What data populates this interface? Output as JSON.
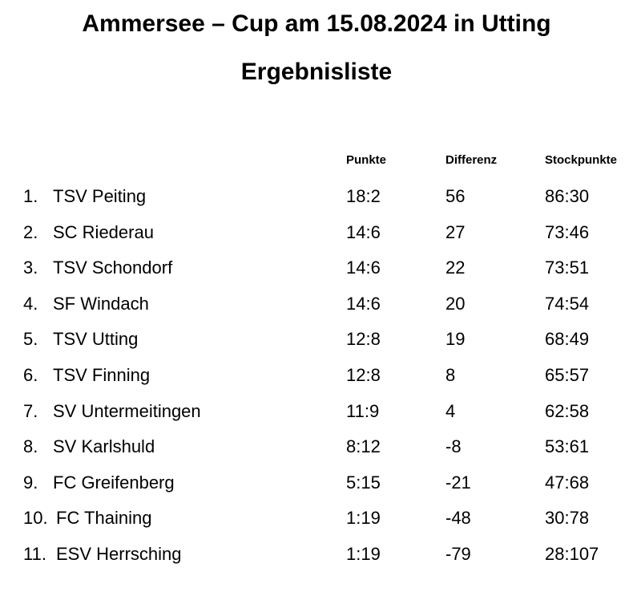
{
  "document": {
    "title": "Ammersee – Cup am 15.08.2024 in Utting",
    "subtitle": "Ergebnisliste"
  },
  "table": {
    "headers": {
      "punkte": "Punkte",
      "differenz": "Differenz",
      "stockpunkte": "Stockpunkte"
    },
    "rows": [
      {
        "rank": "1.",
        "team": "TSV Peiting",
        "punkte": "18:2",
        "differenz": "56",
        "stockpunkte": "86:30"
      },
      {
        "rank": "2.",
        "team": "SC Riederau",
        "punkte": "14:6",
        "differenz": "27",
        "stockpunkte": "73:46"
      },
      {
        "rank": "3.",
        "team": "TSV Schondorf",
        "punkte": "14:6",
        "differenz": "22",
        "stockpunkte": "73:51"
      },
      {
        "rank": "4.",
        "team": "SF Windach",
        "punkte": "14:6",
        "differenz": "20",
        "stockpunkte": "74:54"
      },
      {
        "rank": "5.",
        "team": "TSV Utting",
        "punkte": "12:8",
        "differenz": "19",
        "stockpunkte": "68:49"
      },
      {
        "rank": "6.",
        "team": "TSV Finning",
        "punkte": "12:8",
        "differenz": "8",
        "stockpunkte": "65:57"
      },
      {
        "rank": "7.",
        "team": "SV Untermeitingen",
        "punkte": "11:9",
        "differenz": "4",
        "stockpunkte": "62:58"
      },
      {
        "rank": "8.",
        "team": "SV Karlshuld",
        "punkte": "8:12",
        "differenz": "-8",
        "stockpunkte": "53:61"
      },
      {
        "rank": "9.",
        "team": "FC Greifenberg",
        "punkte": "5:15",
        "differenz": "-21",
        "stockpunkte": "47:68"
      },
      {
        "rank": "10.",
        "team": "FC Thaining",
        "punkte": "1:19",
        "differenz": "-48",
        "stockpunkte": "30:78"
      },
      {
        "rank": "11.",
        "team": "ESV Herrsching",
        "punkte": "1:19",
        "differenz": "-79",
        "stockpunkte": "28:107"
      }
    ]
  }
}
